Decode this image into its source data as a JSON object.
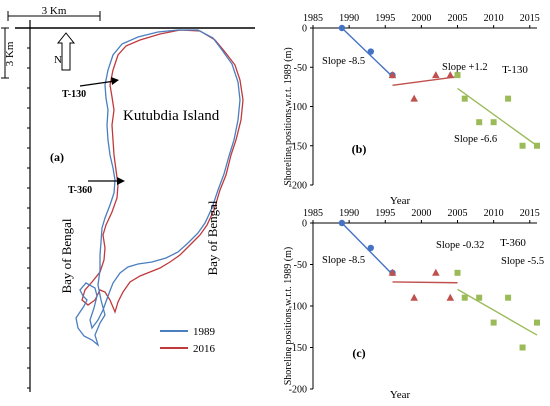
{
  "map": {
    "scale_label": "3 Km",
    "vertical_scale_label": "3 Km",
    "north_label": "N",
    "island_label": "Kutubdia Island",
    "panel_label": "(a)",
    "bay_left_label": "Bay of Bengal",
    "bay_right_label": "Bay of Bengal",
    "transect_labels": [
      "T-130",
      "T-360"
    ],
    "legend": [
      {
        "name": "1989",
        "color": "#4a7ebf"
      },
      {
        "name": "2016",
        "color": "#c0393b"
      }
    ]
  },
  "chart_data": [
    {
      "type": "scatter",
      "panel_label": "(b)",
      "transect": "T-130",
      "ylabel": "Shoreline positions w.r.t. 1989 (m)",
      "xlabel": "Year",
      "x_ticks": [
        1985,
        1990,
        1995,
        2000,
        2005,
        2010,
        2015
      ],
      "y_ticks": [
        0,
        -50,
        -100,
        -150,
        -200
      ],
      "xlim": [
        1985,
        2016
      ],
      "ylim": [
        -200,
        0
      ],
      "series": [
        {
          "color": "#4472c4",
          "marker": "circle",
          "points": [
            [
              1989,
              0
            ],
            [
              1993,
              -30
            ],
            [
              1996,
              -60
            ]
          ],
          "trend": [
            [
              1989,
              0
            ],
            [
              1996,
              -62
            ]
          ],
          "slope_label": "Slope -8.5"
        },
        {
          "color": "#c0504d",
          "marker": "triangle",
          "points": [
            [
              1996,
              -60
            ],
            [
              1999,
              -90
            ],
            [
              2002,
              -60
            ],
            [
              2004,
              -60
            ]
          ],
          "trend": [
            [
              1996,
              -73
            ],
            [
              2005,
              -62
            ]
          ],
          "slope_label": "Slope +1.2"
        },
        {
          "color": "#9bbb59",
          "marker": "square",
          "points": [
            [
              2005,
              -60
            ],
            [
              2006,
              -90
            ],
            [
              2008,
              -120
            ],
            [
              2010,
              -120
            ],
            [
              2012,
              -90
            ],
            [
              2014,
              -150
            ],
            [
              2016,
              -150
            ]
          ],
          "trend": [
            [
              2005,
              -77
            ],
            [
              2016,
              -150
            ]
          ],
          "slope_label": "Slope -6.6"
        }
      ]
    },
    {
      "type": "scatter",
      "panel_label": "(c)",
      "transect": "T-360",
      "ylabel": "Shoreline positions w.r.t. 1989 (m)",
      "xlabel": "Year",
      "x_ticks": [
        1985,
        1990,
        1995,
        2000,
        2005,
        2010,
        2015
      ],
      "y_ticks": [
        0,
        -50,
        -100,
        -150,
        -200
      ],
      "xlim": [
        1985,
        2016
      ],
      "ylim": [
        -200,
        0
      ],
      "series": [
        {
          "color": "#4472c4",
          "marker": "circle",
          "points": [
            [
              1989,
              0
            ],
            [
              1993,
              -30
            ],
            [
              1996,
              -60
            ]
          ],
          "trend": [
            [
              1989,
              0
            ],
            [
              1996,
              -62
            ]
          ],
          "slope_label": "Slope -8.5"
        },
        {
          "color": "#c0504d",
          "marker": "triangle",
          "points": [
            [
              1996,
              -60
            ],
            [
              1999,
              -90
            ],
            [
              2002,
              -60
            ],
            [
              2004,
              -90
            ]
          ],
          "trend": [
            [
              1996,
              -71
            ],
            [
              2005,
              -72
            ]
          ],
          "slope_label": "Slope -0.32"
        },
        {
          "color": "#9bbb59",
          "marker": "square",
          "points": [
            [
              2005,
              -60
            ],
            [
              2006,
              -90
            ],
            [
              2008,
              -90
            ],
            [
              2010,
              -120
            ],
            [
              2012,
              -90
            ],
            [
              2014,
              -150
            ],
            [
              2016,
              -120
            ]
          ],
          "trend": [
            [
              2005,
              -80
            ],
            [
              2016,
              -135
            ]
          ],
          "slope_label": "Slope -5.5"
        }
      ]
    }
  ]
}
